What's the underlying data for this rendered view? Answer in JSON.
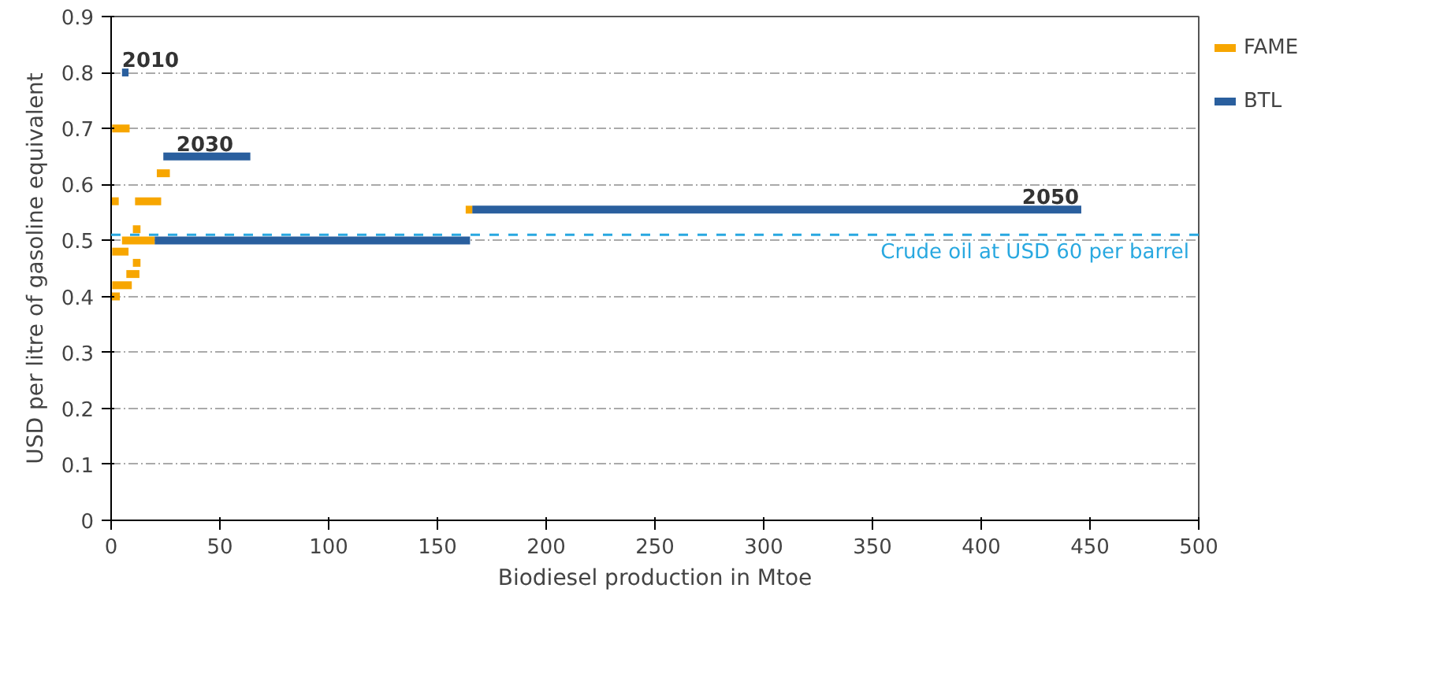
{
  "chart_data": {
    "type": "line",
    "xlabel": "Biodiesel production in Mtoe",
    "ylabel": "USD per litre of gasoline equivalent",
    "xlim": [
      0,
      500
    ],
    "ylim": [
      0,
      0.9
    ],
    "xticks": [
      0,
      50,
      100,
      150,
      200,
      250,
      300,
      350,
      400,
      450,
      500
    ],
    "yticks": [
      0,
      0.1,
      0.2,
      0.3,
      0.4,
      0.5,
      0.6,
      0.7,
      0.8,
      0.9
    ],
    "grid": "y",
    "legend": "right",
    "marker": "none",
    "line_style": "solid",
    "series": [
      {
        "name": "FAME",
        "color": "#f7a600",
        "x": [
          0,
          4
        ],
        "values": [
          0.4,
          0.4
        ]
      },
      {
        "color": "#f7a600",
        "x": [
          0.5,
          8
        ],
        "values": [
          0.48,
          0.48
        ]
      },
      {
        "color": "#f7a600",
        "x": [
          0,
          3.5
        ],
        "values": [
          0.57,
          0.57
        ]
      },
      {
        "color": "#f7a600",
        "x": [
          0.5,
          8.5
        ],
        "values": [
          0.7,
          0.7
        ]
      },
      {
        "name": "BTL",
        "color": "#2a5f9e",
        "x": [
          5,
          8
        ],
        "values": [
          0.8,
          0.8
        ]
      },
      {
        "color": "#f7a600",
        "x": [
          0.5,
          9.5
        ],
        "values": [
          0.42,
          0.42
        ]
      },
      {
        "color": "#f7a600",
        "x": [
          7,
          13
        ],
        "values": [
          0.44,
          0.44
        ]
      },
      {
        "color": "#f7a600",
        "x": [
          10,
          13.5
        ],
        "values": [
          0.46,
          0.46
        ]
      },
      {
        "color": "#f7a600",
        "x": [
          10,
          13.5
        ],
        "values": [
          0.52,
          0.52
        ]
      },
      {
        "color": "#f7a600",
        "x": [
          11,
          23
        ],
        "values": [
          0.57,
          0.57
        ]
      },
      {
        "color": "#f7a600",
        "x": [
          21,
          27
        ],
        "values": [
          0.62,
          0.62
        ]
      },
      {
        "color": "#2a5f9e",
        "x": [
          24,
          64
        ],
        "values": [
          0.65,
          0.65
        ]
      },
      {
        "color": "#2a5f9e",
        "x": [
          20,
          165
        ],
        "values": [
          0.5,
          0.5
        ]
      },
      {
        "color": "#f7a600",
        "x": [
          5,
          20
        ],
        "values": [
          0.5,
          0.5
        ]
      },
      {
        "color": "#2a5f9e",
        "x": [
          166,
          446
        ],
        "values": [
          0.555,
          0.555
        ]
      },
      {
        "color": "#f7a600",
        "x": [
          163,
          166
        ],
        "values": [
          0.555,
          0.555
        ]
      }
    ],
    "ref_lines": [
      {
        "axis": "y",
        "value": 0.51,
        "label": "Crude oil at USD 60 per barrel",
        "color": "#29a8e0",
        "line_style": "dashed"
      }
    ],
    "annotations": [
      {
        "text": "2010",
        "x": 5,
        "y": 0.81
      },
      {
        "text": "2030",
        "x": 30,
        "y": 0.66
      },
      {
        "text": "2050",
        "x": 445,
        "y": 0.565
      }
    ]
  }
}
